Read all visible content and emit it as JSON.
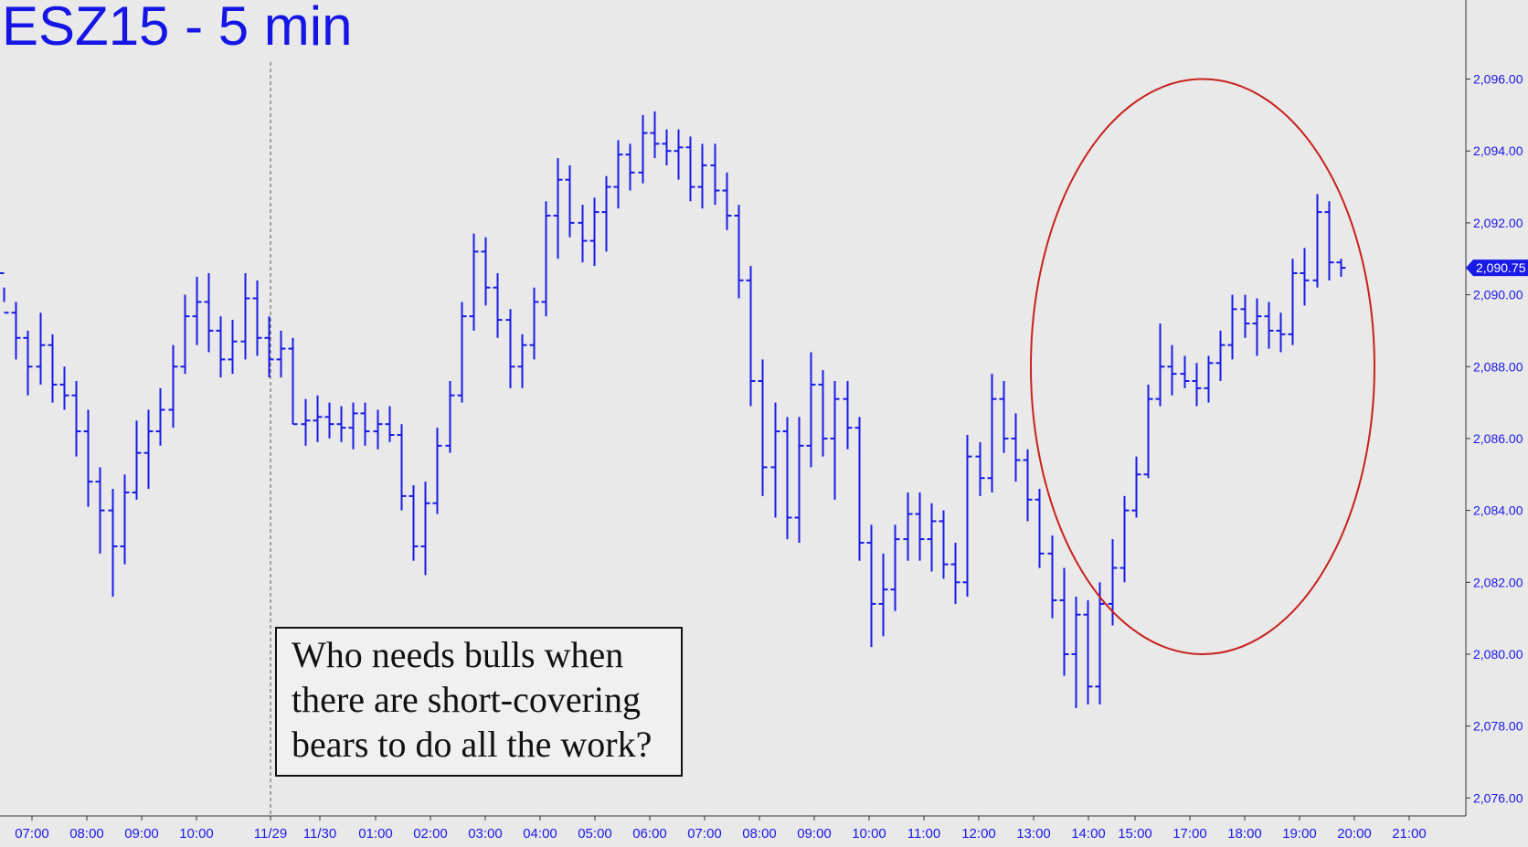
{
  "chart_data": {
    "type": "ohlc",
    "title": "ESZ15 - 5 min",
    "annotation_lines": [
      "Who needs bulls when",
      "there are short-covering",
      "bears to do all the work?"
    ],
    "last_price_label": "2,090.75",
    "last_price": 2090.75,
    "ylim": [
      2075.5,
      2098.2
    ],
    "yticks": [
      {
        "value": 2076,
        "label": "2,076.00"
      },
      {
        "value": 2078,
        "label": "2,078.00"
      },
      {
        "value": 2080,
        "label": "2,080.00"
      },
      {
        "value": 2082,
        "label": "2,082.00"
      },
      {
        "value": 2084,
        "label": "2,084.00"
      },
      {
        "value": 2086,
        "label": "2,086.00"
      },
      {
        "value": 2088,
        "label": "2,088.00"
      },
      {
        "value": 2090,
        "label": "2,090.00"
      },
      {
        "value": 2092,
        "label": "2,092.00"
      },
      {
        "value": 2094,
        "label": "2,094.00"
      },
      {
        "value": 2096,
        "label": "2,096.00"
      }
    ],
    "xticks": [
      "07:00",
      "08:00",
      "09:00",
      "10:00",
      "11/29",
      "11/30",
      "01:00",
      "02:00",
      "03:00",
      "04:00",
      "05:00",
      "06:00",
      "07:00",
      "08:00",
      "09:00",
      "10:00",
      "11:00",
      "12:00",
      "13:00",
      "14:00",
      "15:00",
      "17:00",
      "18:00",
      "19:00",
      "20:00",
      "21:00"
    ],
    "session_divider_after_tick": "11/29",
    "series_color": "#1a1ae6",
    "highlight_ellipse_color": "#c8201e",
    "highlight_ellipse_range": {
      "price_low": 2080.0,
      "price_high": 2096.0,
      "time_from": "13:30",
      "time_to": "20:00"
    },
    "bars": [
      [
        2090.6,
        2089.8,
        2090.2,
        2089.5
      ],
      [
        2089.5,
        2088.2,
        2089.8,
        2088.8
      ],
      [
        2088.8,
        2087.2,
        2089.0,
        2088.0
      ],
      [
        2088.0,
        2087.5,
        2089.5,
        2088.6
      ],
      [
        2088.6,
        2087.0,
        2088.9,
        2087.5
      ],
      [
        2087.5,
        2086.8,
        2088.0,
        2087.2
      ],
      [
        2087.2,
        2085.5,
        2087.6,
        2086.2
      ],
      [
        2086.2,
        2084.1,
        2086.8,
        2084.8
      ],
      [
        2084.8,
        2082.8,
        2085.2,
        2084.0
      ],
      [
        2084.0,
        2081.6,
        2084.6,
        2083.0
      ],
      [
        2083.0,
        2082.5,
        2085.0,
        2084.5
      ],
      [
        2084.5,
        2084.3,
        2086.5,
        2085.6
      ],
      [
        2085.6,
        2084.6,
        2086.8,
        2086.2
      ],
      [
        2086.2,
        2085.8,
        2087.4,
        2086.8
      ],
      [
        2086.8,
        2086.3,
        2088.6,
        2088.0
      ],
      [
        2088.0,
        2087.8,
        2090.0,
        2089.4
      ],
      [
        2089.4,
        2088.6,
        2090.5,
        2089.8
      ],
      [
        2089.8,
        2088.4,
        2090.6,
        2089.0
      ],
      [
        2089.0,
        2087.7,
        2089.4,
        2088.2
      ],
      [
        2088.2,
        2087.8,
        2089.3,
        2088.7
      ],
      [
        2088.7,
        2088.2,
        2090.6,
        2089.9
      ],
      [
        2089.9,
        2088.3,
        2090.4,
        2088.8
      ],
      [
        2088.8,
        2087.7,
        2089.4,
        2088.2
      ],
      [
        2088.2,
        2087.7,
        2089.0,
        2088.5
      ],
      [
        2088.5,
        2086.4,
        2088.8,
        2086.4
      ],
      [
        2086.4,
        2085.8,
        2087.1,
        2086.5
      ],
      [
        2086.5,
        2085.9,
        2087.2,
        2086.6
      ],
      [
        2086.6,
        2086.0,
        2087.0,
        2086.4
      ],
      [
        2086.4,
        2085.9,
        2086.9,
        2086.3
      ],
      [
        2086.3,
        2085.7,
        2087.0,
        2086.7
      ],
      [
        2086.7,
        2085.8,
        2087.0,
        2086.2
      ],
      [
        2086.2,
        2085.7,
        2086.8,
        2086.4
      ],
      [
        2086.4,
        2085.9,
        2086.9,
        2086.1
      ],
      [
        2086.1,
        2084.0,
        2086.4,
        2084.4
      ],
      [
        2084.4,
        2082.6,
        2084.7,
        2083.0
      ],
      [
        2083.0,
        2082.2,
        2084.8,
        2084.2
      ],
      [
        2084.2,
        2083.9,
        2086.3,
        2085.8
      ],
      [
        2085.8,
        2085.6,
        2087.6,
        2087.2
      ],
      [
        2087.2,
        2087.0,
        2089.8,
        2089.4
      ],
      [
        2089.4,
        2089.0,
        2091.7,
        2091.2
      ],
      [
        2091.2,
        2089.7,
        2091.6,
        2090.2
      ],
      [
        2090.2,
        2088.8,
        2090.6,
        2089.3
      ],
      [
        2089.3,
        2087.4,
        2089.6,
        2088.0
      ],
      [
        2088.0,
        2087.4,
        2088.9,
        2088.6
      ],
      [
        2088.6,
        2088.2,
        2090.2,
        2089.8
      ],
      [
        2089.8,
        2089.4,
        2092.6,
        2092.2
      ],
      [
        2092.2,
        2091.0,
        2093.8,
        2093.2
      ],
      [
        2093.2,
        2091.6,
        2093.6,
        2092.0
      ],
      [
        2092.0,
        2090.9,
        2092.5,
        2091.5
      ],
      [
        2091.5,
        2090.8,
        2092.7,
        2092.3
      ],
      [
        2092.3,
        2091.2,
        2093.3,
        2093.0
      ],
      [
        2093.0,
        2092.4,
        2094.3,
        2093.9
      ],
      [
        2093.9,
        2092.9,
        2094.2,
        2093.4
      ],
      [
        2093.4,
        2093.1,
        2095.0,
        2094.5
      ],
      [
        2094.5,
        2093.8,
        2095.1,
        2094.2
      ],
      [
        2094.2,
        2093.6,
        2094.6,
        2094.0
      ],
      [
        2094.0,
        2093.2,
        2094.6,
        2094.1
      ],
      [
        2094.1,
        2092.6,
        2094.4,
        2093.0
      ],
      [
        2093.0,
        2092.4,
        2094.2,
        2093.6
      ],
      [
        2093.6,
        2092.5,
        2094.2,
        2092.9
      ],
      [
        2092.9,
        2091.8,
        2093.4,
        2092.2
      ],
      [
        2092.2,
        2089.9,
        2092.5,
        2090.4
      ],
      [
        2090.4,
        2086.9,
        2090.8,
        2087.6
      ],
      [
        2087.6,
        2084.4,
        2088.2,
        2085.2
      ],
      [
        2085.2,
        2083.8,
        2087.0,
        2086.2
      ],
      [
        2086.2,
        2083.2,
        2086.6,
        2083.8
      ],
      [
        2083.8,
        2083.1,
        2086.6,
        2085.8
      ],
      [
        2085.8,
        2085.2,
        2088.4,
        2087.5
      ],
      [
        2087.5,
        2085.5,
        2087.9,
        2086.0
      ],
      [
        2086.0,
        2084.3,
        2087.6,
        2087.1
      ],
      [
        2087.1,
        2085.7,
        2087.6,
        2086.3
      ],
      [
        2086.3,
        2082.6,
        2086.6,
        2083.1
      ],
      [
        2083.1,
        2080.2,
        2083.6,
        2081.4
      ],
      [
        2081.4,
        2080.5,
        2082.8,
        2081.8
      ],
      [
        2081.8,
        2081.2,
        2083.6,
        2083.2
      ],
      [
        2083.2,
        2082.6,
        2084.5,
        2083.9
      ],
      [
        2083.9,
        2082.6,
        2084.5,
        2083.2
      ],
      [
        2083.2,
        2082.3,
        2084.2,
        2083.7
      ],
      [
        2083.7,
        2082.1,
        2084.0,
        2082.5
      ],
      [
        2082.5,
        2081.4,
        2083.1,
        2082.0
      ],
      [
        2082.0,
        2081.6,
        2086.1,
        2085.5
      ],
      [
        2085.5,
        2084.4,
        2085.9,
        2084.9
      ],
      [
        2084.9,
        2084.5,
        2087.8,
        2087.1
      ],
      [
        2087.1,
        2085.6,
        2087.6,
        2086.0
      ],
      [
        2086.0,
        2084.8,
        2086.7,
        2085.4
      ],
      [
        2085.4,
        2083.7,
        2085.7,
        2084.3
      ],
      [
        2084.3,
        2082.4,
        2084.6,
        2082.8
      ],
      [
        2082.8,
        2081.0,
        2083.3,
        2081.5
      ],
      [
        2081.5,
        2079.4,
        2082.4,
        2080.0
      ],
      [
        2080.0,
        2078.5,
        2081.6,
        2081.1
      ],
      [
        2081.1,
        2078.6,
        2081.5,
        2079.1
      ],
      [
        2079.1,
        2078.6,
        2082.0,
        2081.4
      ],
      [
        2081.4,
        2080.8,
        2083.2,
        2082.4
      ],
      [
        2082.4,
        2082.0,
        2084.4,
        2084.0
      ],
      [
        2084.0,
        2083.8,
        2085.5,
        2085.0
      ],
      [
        2085.0,
        2084.9,
        2087.5,
        2087.1
      ],
      [
        2087.1,
        2086.9,
        2089.2,
        2088.0
      ],
      [
        2088.0,
        2087.2,
        2088.6,
        2087.8
      ],
      [
        2087.8,
        2087.4,
        2088.3,
        2087.6
      ],
      [
        2087.6,
        2086.9,
        2088.1,
        2087.4
      ],
      [
        2087.4,
        2087.0,
        2088.3,
        2088.1
      ],
      [
        2088.1,
        2087.6,
        2089.0,
        2088.6
      ],
      [
        2088.6,
        2088.2,
        2090.0,
        2089.6
      ],
      [
        2089.6,
        2088.8,
        2090.0,
        2089.2
      ],
      [
        2089.2,
        2088.3,
        2089.9,
        2089.4
      ],
      [
        2089.4,
        2088.5,
        2089.8,
        2089.0
      ],
      [
        2089.0,
        2088.4,
        2089.5,
        2088.9
      ],
      [
        2088.9,
        2088.6,
        2091.0,
        2090.6
      ],
      [
        2090.6,
        2089.7,
        2091.3,
        2090.4
      ],
      [
        2090.4,
        2090.2,
        2092.8,
        2092.3
      ],
      [
        2092.3,
        2090.4,
        2092.6,
        2090.9
      ],
      [
        2090.9,
        2090.5,
        2091.0,
        2090.75
      ]
    ]
  }
}
